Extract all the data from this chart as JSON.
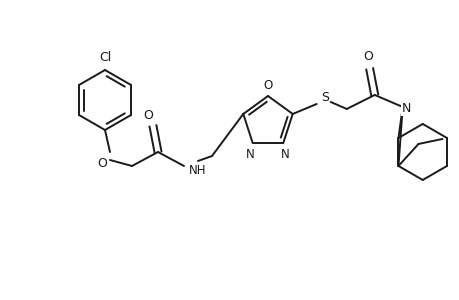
{
  "bg_color": "#ffffff",
  "line_color": "#1a1a1a",
  "line_width": 1.4,
  "font_size": 8.5,
  "figsize": [
    4.6,
    3.0
  ],
  "dpi": 100,
  "xlim": [
    0,
    460
  ],
  "ylim": [
    0,
    300
  ]
}
